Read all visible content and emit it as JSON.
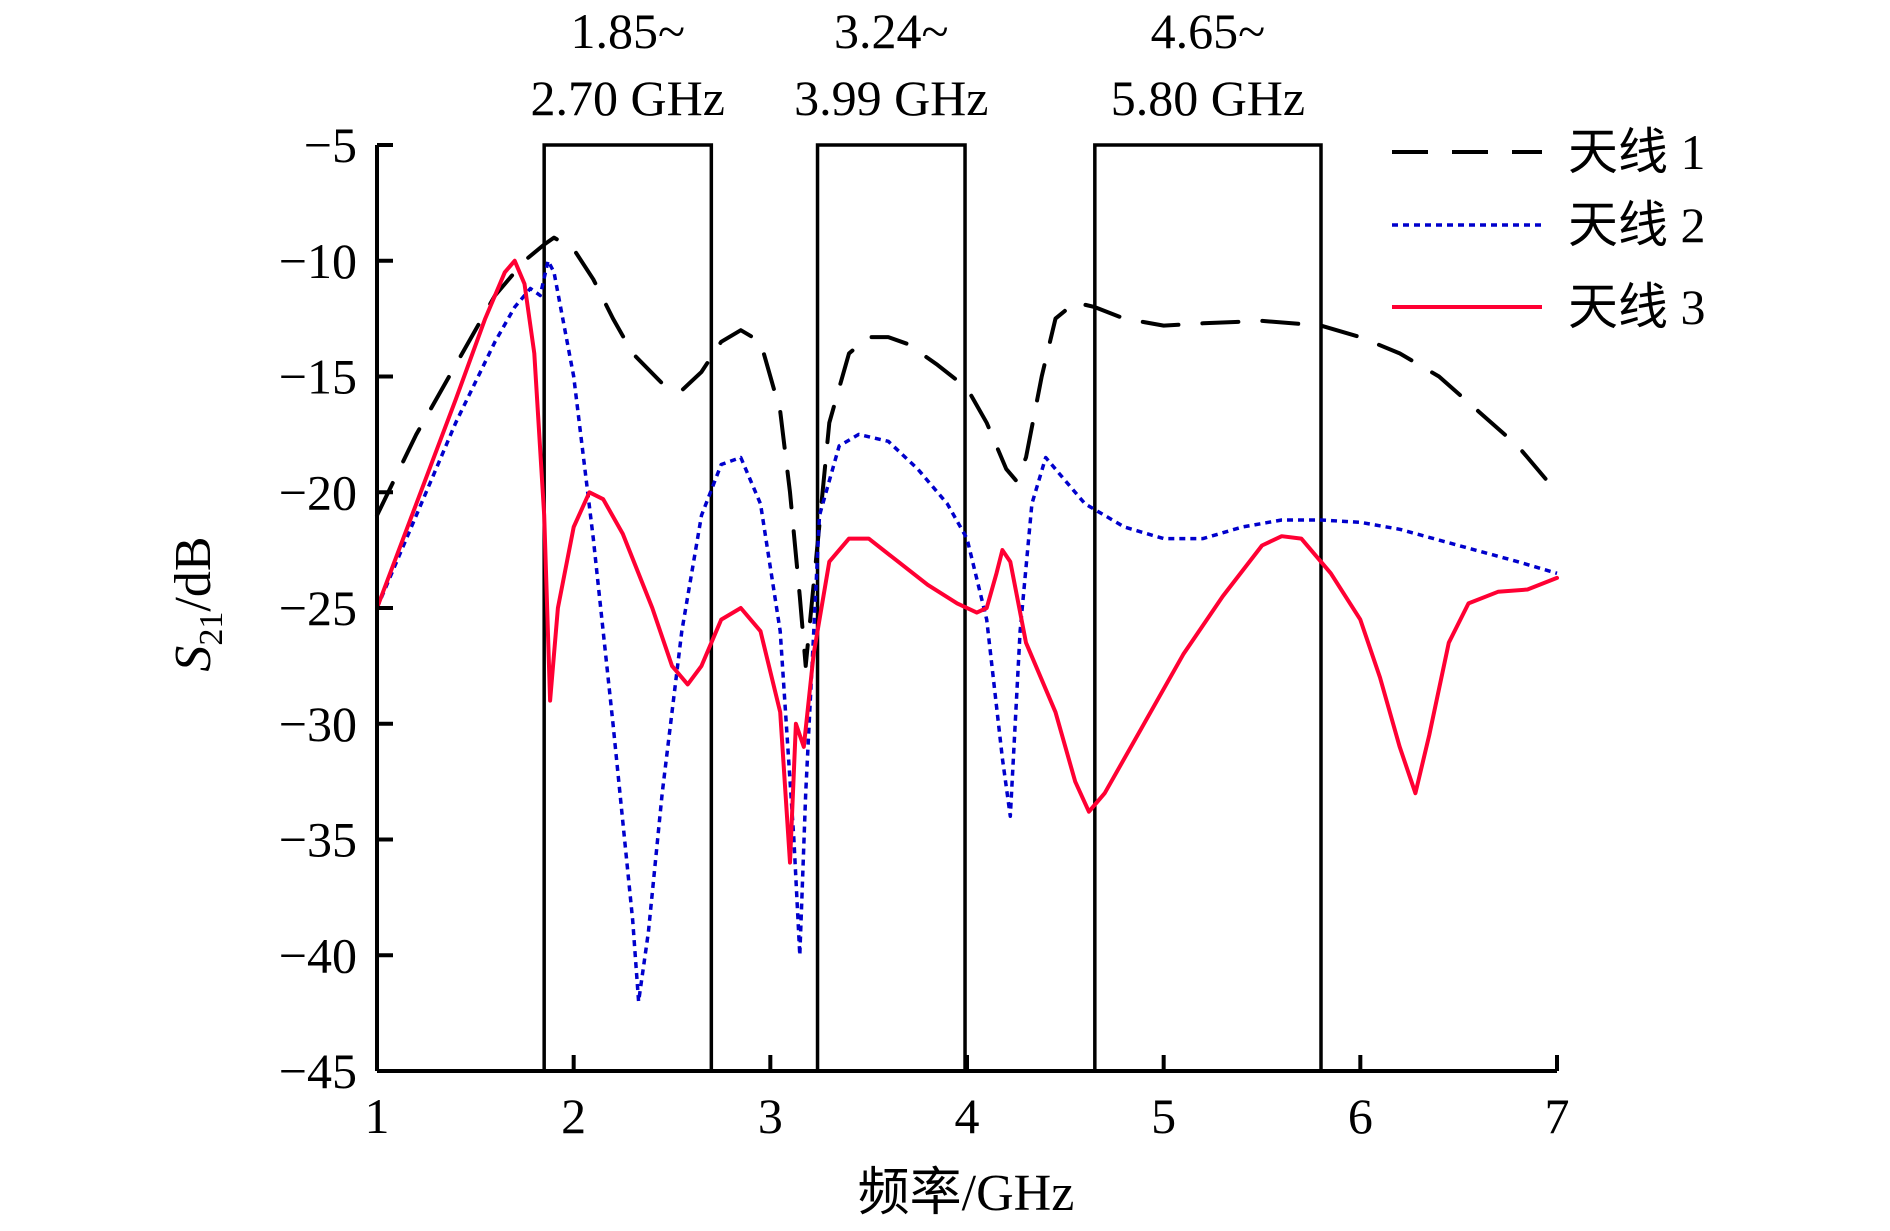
{
  "chart_data": {
    "type": "line",
    "xlabel": "频率/GHz",
    "ylabel": {
      "main": "S",
      "sub": "21",
      "rest": "/dB"
    },
    "xlim": [
      1,
      7
    ],
    "ylim": [
      -45,
      -5
    ],
    "xticks": [
      "1",
      "2",
      "3",
      "4",
      "5",
      "6",
      "7"
    ],
    "yticks": [
      "−5",
      "−10",
      "−15",
      "−20",
      "−25",
      "−30",
      "−35",
      "−40",
      "−45"
    ],
    "grid": false,
    "legend_position": "top-right",
    "bands": [
      {
        "start": 1.85,
        "end": 2.7,
        "line1": "1.85~",
        "line2": "2.70 GHz"
      },
      {
        "start": 3.24,
        "end": 3.99,
        "line1": "3.24~",
        "line2": "3.99 GHz"
      },
      {
        "start": 4.65,
        "end": 5.8,
        "line1": "4.65~",
        "line2": "5.80 GHz"
      }
    ],
    "series": [
      {
        "name": "天线 1",
        "color": "#000000",
        "style": "dashed",
        "points": [
          [
            1.0,
            -21.0
          ],
          [
            1.2,
            -17.5
          ],
          [
            1.4,
            -14.5
          ],
          [
            1.6,
            -11.5
          ],
          [
            1.75,
            -10.0
          ],
          [
            1.85,
            -9.3
          ],
          [
            1.9,
            -9.0
          ],
          [
            2.0,
            -9.5
          ],
          [
            2.1,
            -10.8
          ],
          [
            2.2,
            -12.5
          ],
          [
            2.3,
            -14.0
          ],
          [
            2.45,
            -15.3
          ],
          [
            2.55,
            -15.6
          ],
          [
            2.65,
            -14.8
          ],
          [
            2.75,
            -13.5
          ],
          [
            2.85,
            -13.0
          ],
          [
            2.95,
            -13.5
          ],
          [
            3.05,
            -16.5
          ],
          [
            3.1,
            -20.0
          ],
          [
            3.15,
            -24.5
          ],
          [
            3.18,
            -27.5
          ],
          [
            3.22,
            -24.0
          ],
          [
            3.3,
            -17.0
          ],
          [
            3.4,
            -14.0
          ],
          [
            3.5,
            -13.3
          ],
          [
            3.6,
            -13.3
          ],
          [
            3.7,
            -13.6
          ],
          [
            3.85,
            -14.5
          ],
          [
            4.0,
            -15.5
          ],
          [
            4.1,
            -17.0
          ],
          [
            4.2,
            -19.0
          ],
          [
            4.25,
            -19.5
          ],
          [
            4.3,
            -18.5
          ],
          [
            4.38,
            -15.0
          ],
          [
            4.45,
            -12.5
          ],
          [
            4.55,
            -11.8
          ],
          [
            4.65,
            -12.0
          ],
          [
            4.8,
            -12.5
          ],
          [
            5.0,
            -12.8
          ],
          [
            5.2,
            -12.7
          ],
          [
            5.5,
            -12.6
          ],
          [
            5.8,
            -12.8
          ],
          [
            6.0,
            -13.3
          ],
          [
            6.2,
            -14.0
          ],
          [
            6.4,
            -15.0
          ],
          [
            6.6,
            -16.5
          ],
          [
            6.8,
            -18.0
          ],
          [
            7.0,
            -20.0
          ]
        ]
      },
      {
        "name": "天线 2",
        "color": "#0000cc",
        "style": "dotted",
        "points": [
          [
            1.0,
            -25.0
          ],
          [
            1.2,
            -21.0
          ],
          [
            1.4,
            -17.0
          ],
          [
            1.6,
            -13.5
          ],
          [
            1.7,
            -12.0
          ],
          [
            1.78,
            -11.2
          ],
          [
            1.83,
            -11.5
          ],
          [
            1.87,
            -10.0
          ],
          [
            1.9,
            -10.5
          ],
          [
            2.0,
            -15.0
          ],
          [
            2.1,
            -22.0
          ],
          [
            2.2,
            -30.0
          ],
          [
            2.3,
            -38.5
          ],
          [
            2.33,
            -42.0
          ],
          [
            2.38,
            -39.0
          ],
          [
            2.45,
            -33.0
          ],
          [
            2.55,
            -26.0
          ],
          [
            2.65,
            -21.0
          ],
          [
            2.75,
            -18.8
          ],
          [
            2.85,
            -18.5
          ],
          [
            2.95,
            -20.5
          ],
          [
            3.05,
            -26.0
          ],
          [
            3.12,
            -35.0
          ],
          [
            3.15,
            -40.0
          ],
          [
            3.18,
            -33.0
          ],
          [
            3.25,
            -21.0
          ],
          [
            3.35,
            -18.0
          ],
          [
            3.45,
            -17.5
          ],
          [
            3.6,
            -17.8
          ],
          [
            3.75,
            -19.0
          ],
          [
            3.9,
            -20.5
          ],
          [
            4.0,
            -22.0
          ],
          [
            4.1,
            -25.5
          ],
          [
            4.18,
            -31.5
          ],
          [
            4.22,
            -34.0
          ],
          [
            4.27,
            -26.0
          ],
          [
            4.33,
            -20.5
          ],
          [
            4.4,
            -18.5
          ],
          [
            4.5,
            -19.5
          ],
          [
            4.6,
            -20.5
          ],
          [
            4.8,
            -21.5
          ],
          [
            5.0,
            -22.0
          ],
          [
            5.2,
            -22.0
          ],
          [
            5.4,
            -21.5
          ],
          [
            5.6,
            -21.2
          ],
          [
            5.8,
            -21.2
          ],
          [
            6.0,
            -21.3
          ],
          [
            6.2,
            -21.6
          ],
          [
            6.5,
            -22.3
          ],
          [
            6.8,
            -23.0
          ],
          [
            7.0,
            -23.5
          ]
        ]
      },
      {
        "name": "天线 3",
        "color": "#ff0033",
        "style": "solid",
        "points": [
          [
            1.0,
            -25.0
          ],
          [
            1.2,
            -20.5
          ],
          [
            1.4,
            -16.0
          ],
          [
            1.55,
            -12.5
          ],
          [
            1.65,
            -10.5
          ],
          [
            1.7,
            -10.0
          ],
          [
            1.75,
            -11.0
          ],
          [
            1.8,
            -14.0
          ],
          [
            1.85,
            -21.0
          ],
          [
            1.88,
            -29.0
          ],
          [
            1.92,
            -25.0
          ],
          [
            2.0,
            -21.5
          ],
          [
            2.08,
            -20.0
          ],
          [
            2.15,
            -20.3
          ],
          [
            2.25,
            -21.8
          ],
          [
            2.4,
            -25.0
          ],
          [
            2.5,
            -27.5
          ],
          [
            2.58,
            -28.3
          ],
          [
            2.65,
            -27.5
          ],
          [
            2.75,
            -25.5
          ],
          [
            2.85,
            -25.0
          ],
          [
            2.95,
            -26.0
          ],
          [
            3.05,
            -29.5
          ],
          [
            3.1,
            -36.0
          ],
          [
            3.13,
            -30.0
          ],
          [
            3.17,
            -31.0
          ],
          [
            3.22,
            -27.0
          ],
          [
            3.3,
            -23.0
          ],
          [
            3.4,
            -22.0
          ],
          [
            3.5,
            -22.0
          ],
          [
            3.65,
            -23.0
          ],
          [
            3.8,
            -24.0
          ],
          [
            3.95,
            -24.8
          ],
          [
            4.05,
            -25.2
          ],
          [
            4.1,
            -25.0
          ],
          [
            4.15,
            -23.5
          ],
          [
            4.18,
            -22.5
          ],
          [
            4.22,
            -23.0
          ],
          [
            4.3,
            -26.5
          ],
          [
            4.45,
            -29.5
          ],
          [
            4.55,
            -32.5
          ],
          [
            4.62,
            -33.8
          ],
          [
            4.7,
            -33.0
          ],
          [
            4.9,
            -30.0
          ],
          [
            5.1,
            -27.0
          ],
          [
            5.3,
            -24.5
          ],
          [
            5.5,
            -22.3
          ],
          [
            5.6,
            -21.9
          ],
          [
            5.7,
            -22.0
          ],
          [
            5.85,
            -23.5
          ],
          [
            6.0,
            -25.5
          ],
          [
            6.1,
            -28.0
          ],
          [
            6.2,
            -31.0
          ],
          [
            6.28,
            -33.0
          ],
          [
            6.35,
            -30.5
          ],
          [
            6.45,
            -26.5
          ],
          [
            6.55,
            -24.8
          ],
          [
            6.7,
            -24.3
          ],
          [
            6.85,
            -24.2
          ],
          [
            7.0,
            -23.7
          ]
        ]
      }
    ]
  }
}
